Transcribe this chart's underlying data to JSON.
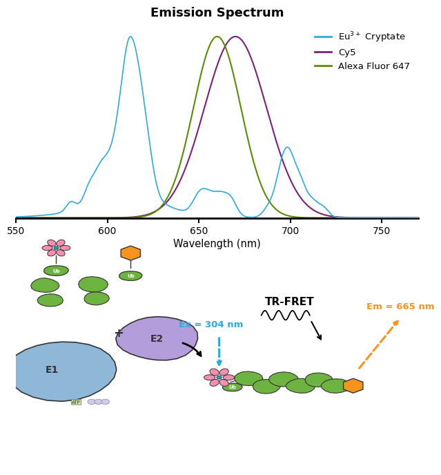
{
  "title": "Emission Spectrum",
  "xlabel": "Wavelength (nm)",
  "xlim": [
    550,
    770
  ],
  "ylim": [
    0,
    1.08
  ],
  "x_ticks": [
    550,
    600,
    650,
    700,
    750
  ],
  "eu_color": "#29ABE2",
  "cy5_color": "#7B1F7A",
  "alexa_color": "#5B8C00",
  "bg_color": "#ffffff",
  "ex_label": "Ex = 304 nm",
  "em_label": "Em = 665 nm",
  "tr_fret_label": "TR-FRET",
  "ex_color": "#29ABE2",
  "em_color": "#F7941D",
  "green": "#6DB33F",
  "pink": "#F48FB1",
  "purple": "#B39DDB",
  "blue_e1": "#8FB8D8",
  "orange": "#F7941D",
  "cyan_dot": "#00B4D8",
  "dark": "#333333"
}
